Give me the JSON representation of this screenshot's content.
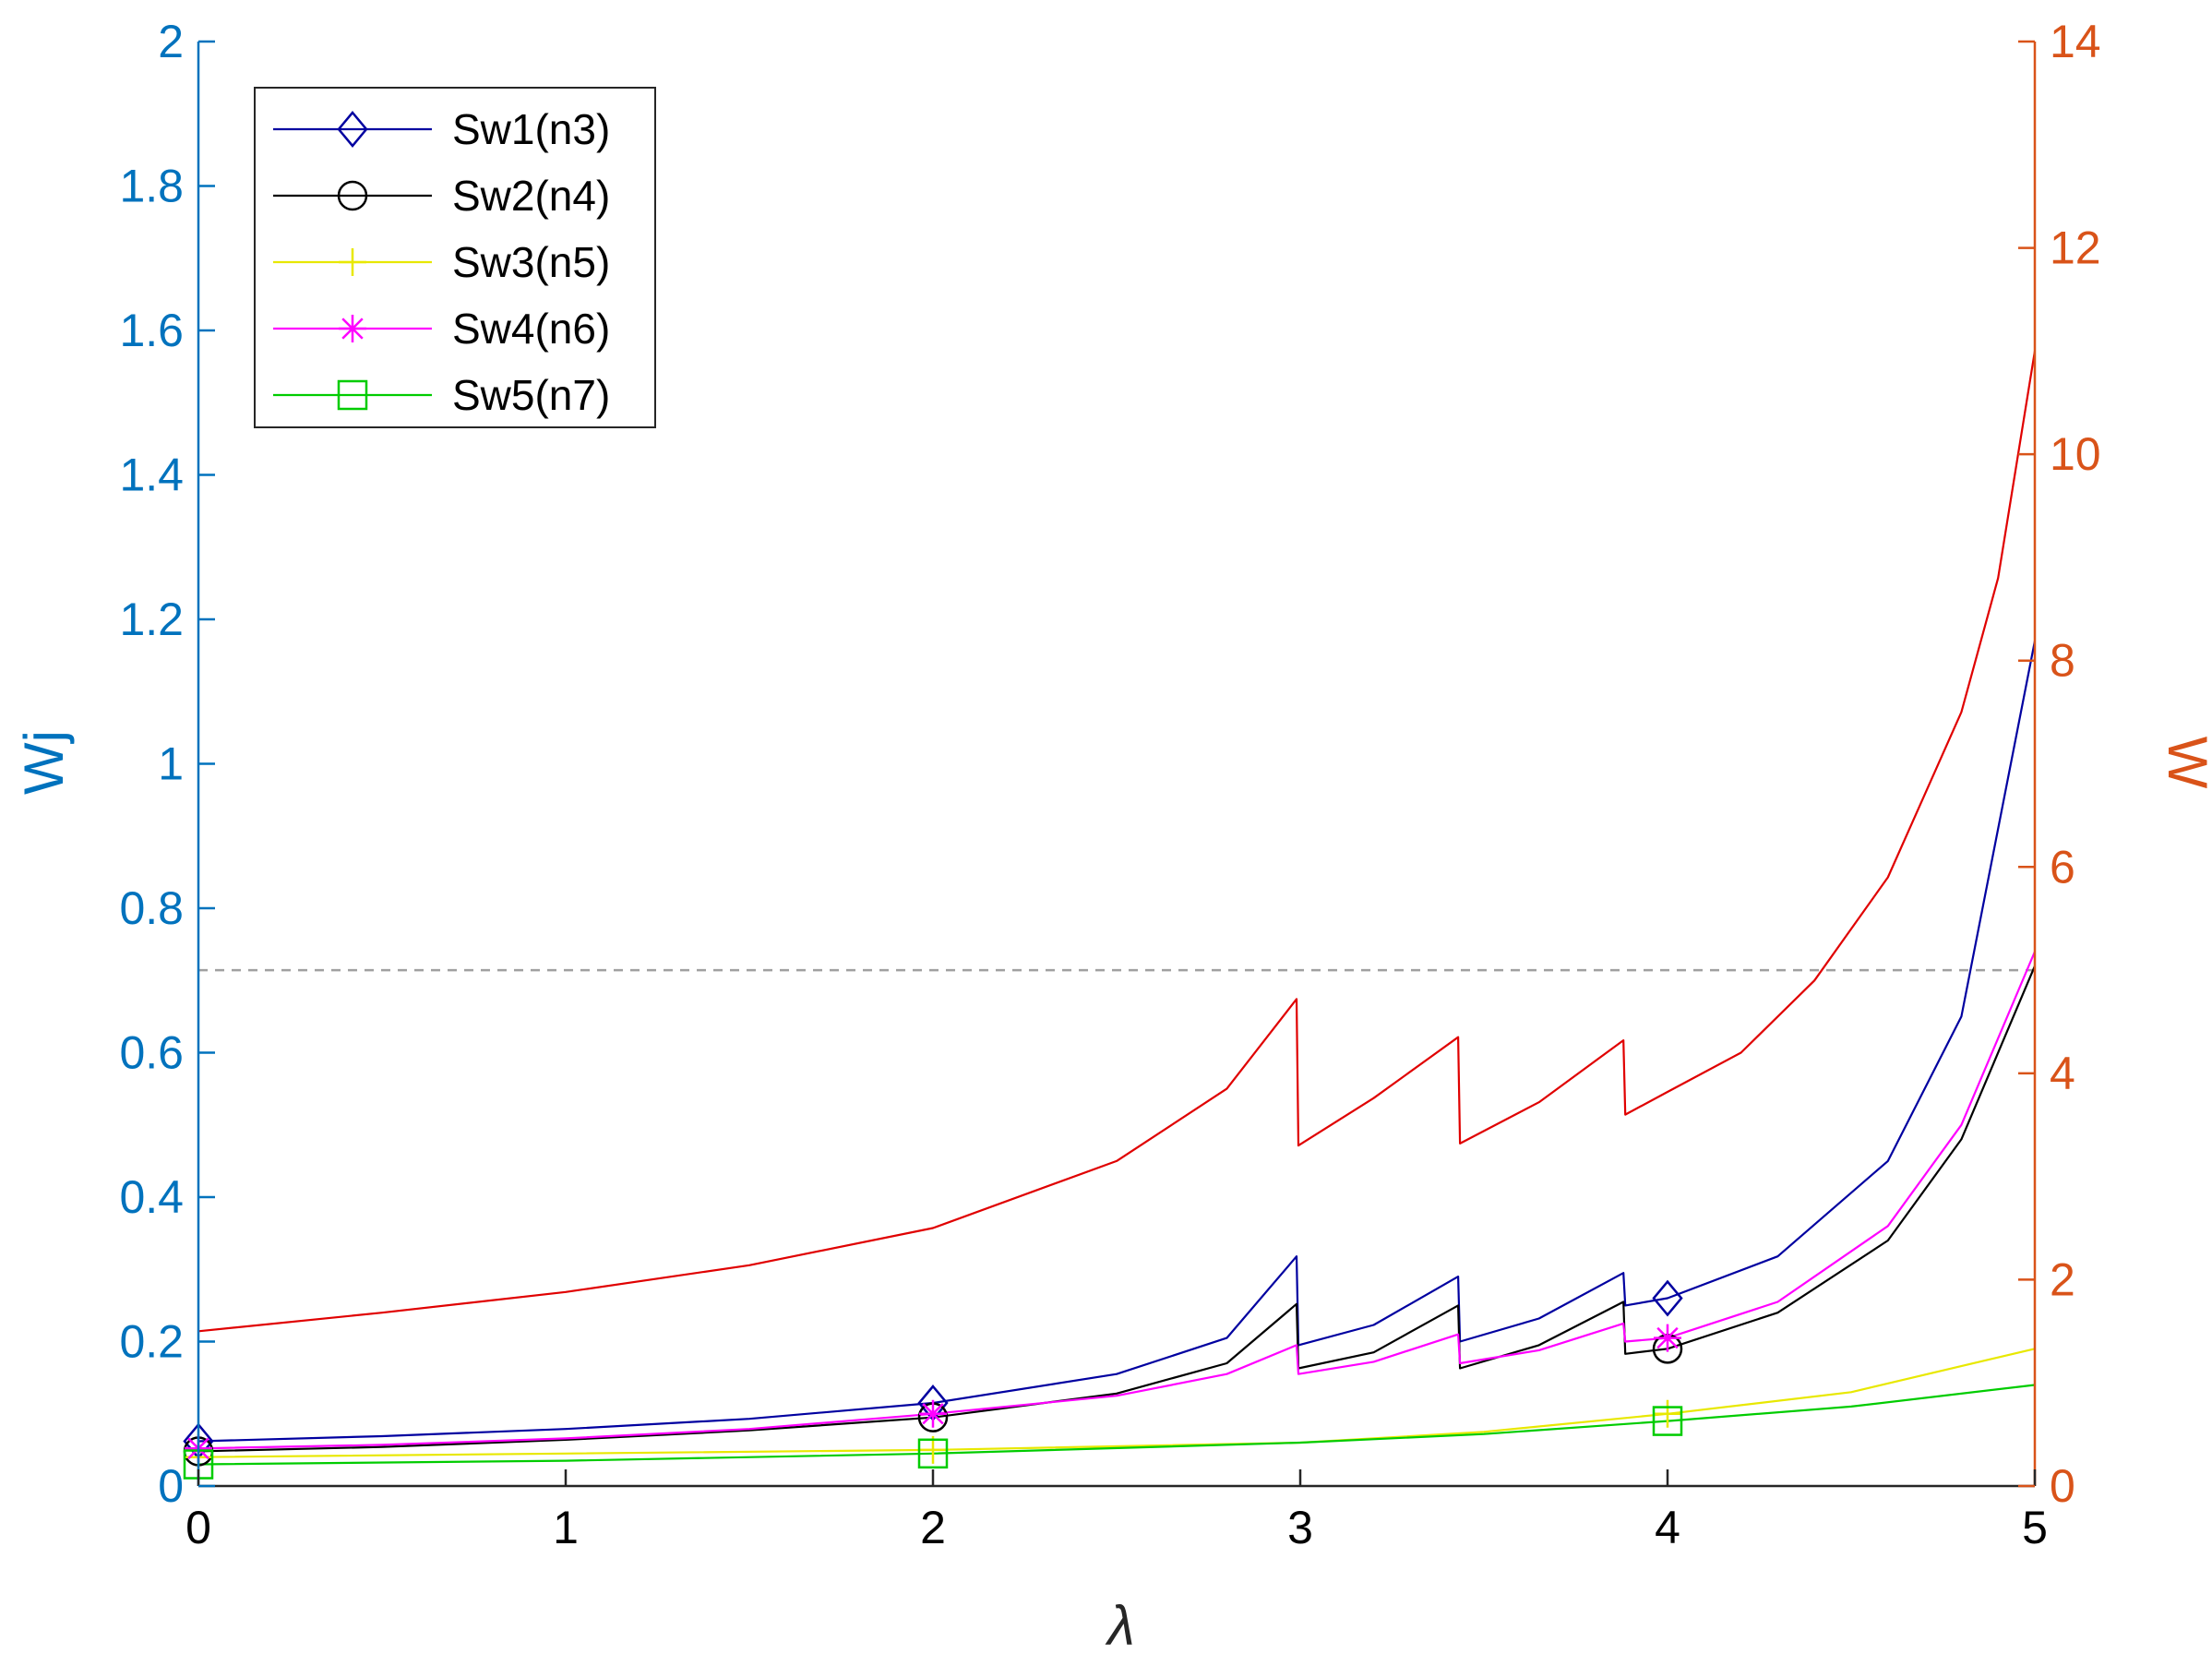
{
  "chart_data": {
    "type": "line",
    "xlabel": "λ",
    "ylabel_left": "Wj",
    "ylabel_right": "W",
    "xlim": [
      0,
      5
    ],
    "ylim_left": [
      0,
      2
    ],
    "ylim_right": [
      0,
      14
    ],
    "x_tick_labels": [
      "0",
      "1",
      "2",
      "3",
      "4",
      "5"
    ],
    "y_left_tick_labels": [
      "0",
      "0.2",
      "0.4",
      "0.6",
      "0.8",
      "1",
      "1.2",
      "1.4",
      "1.6",
      "1.8",
      "2"
    ],
    "y_right_tick_labels": [
      "0",
      "2",
      "4",
      "6",
      "8",
      "10",
      "12",
      "14"
    ],
    "grid": false,
    "legend_position": "top-left",
    "colors": {
      "left_axis": "#0072bd",
      "right_axis": "#d95319",
      "reference_line": "#a0a0a0"
    },
    "reference_line": {
      "axis": "right",
      "y": 5
    },
    "series": [
      {
        "name": "Sw1(n3)",
        "axis": "left",
        "color": "#0000a0",
        "marker": "diamond",
        "marker_x": [
          0,
          2,
          4
        ],
        "points": [
          [
            0,
            0.062
          ],
          [
            0.5,
            0.069
          ],
          [
            1,
            0.079
          ],
          [
            1.5,
            0.093
          ],
          [
            2,
            0.115
          ],
          [
            2.5,
            0.155
          ],
          [
            2.8,
            0.205
          ],
          [
            2.99,
            0.318
          ],
          [
            2.995,
            0.195
          ],
          [
            3.2,
            0.223
          ],
          [
            3.43,
            0.29
          ],
          [
            3.435,
            0.2
          ],
          [
            3.65,
            0.232
          ],
          [
            3.88,
            0.295
          ],
          [
            3.885,
            0.25
          ],
          [
            4,
            0.26
          ],
          [
            4.3,
            0.318
          ],
          [
            4.6,
            0.45
          ],
          [
            4.8,
            0.65
          ],
          [
            5,
            1.17
          ]
        ]
      },
      {
        "name": "Sw2(n4)",
        "axis": "left",
        "color": "#000000",
        "marker": "circle",
        "marker_x": [
          0,
          2,
          4
        ],
        "points": [
          [
            0,
            0.048
          ],
          [
            0.5,
            0.054
          ],
          [
            1,
            0.064
          ],
          [
            1.5,
            0.077
          ],
          [
            2,
            0.095
          ],
          [
            2.5,
            0.128
          ],
          [
            2.8,
            0.17
          ],
          [
            2.99,
            0.252
          ],
          [
            2.995,
            0.163
          ],
          [
            3.2,
            0.185
          ],
          [
            3.43,
            0.25
          ],
          [
            3.435,
            0.163
          ],
          [
            3.65,
            0.195
          ],
          [
            3.88,
            0.255
          ],
          [
            3.885,
            0.183
          ],
          [
            4,
            0.19
          ],
          [
            4.3,
            0.24
          ],
          [
            4.6,
            0.34
          ],
          [
            4.8,
            0.48
          ],
          [
            5,
            0.72
          ]
        ]
      },
      {
        "name": "Sw3(n5)",
        "axis": "left",
        "color": "#e8e800",
        "marker": "plus",
        "marker_x": [
          0,
          2,
          4
        ],
        "points": [
          [
            0,
            0.04
          ],
          [
            1,
            0.045
          ],
          [
            2,
            0.05
          ],
          [
            3,
            0.06
          ],
          [
            3.5,
            0.075
          ],
          [
            4,
            0.1
          ],
          [
            4.5,
            0.13
          ],
          [
            5,
            0.19
          ]
        ]
      },
      {
        "name": "Sw4(n6)",
        "axis": "left",
        "color": "#ff00ff",
        "marker": "asterisk",
        "marker_x": [
          0,
          2,
          4
        ],
        "points": [
          [
            0,
            0.052
          ],
          [
            0.5,
            0.057
          ],
          [
            1,
            0.066
          ],
          [
            1.5,
            0.079
          ],
          [
            2,
            0.1
          ],
          [
            2.5,
            0.125
          ],
          [
            2.8,
            0.155
          ],
          [
            2.99,
            0.195
          ],
          [
            2.995,
            0.155
          ],
          [
            3.2,
            0.172
          ],
          [
            3.43,
            0.21
          ],
          [
            3.435,
            0.17
          ],
          [
            3.65,
            0.188
          ],
          [
            3.88,
            0.225
          ],
          [
            3.885,
            0.2
          ],
          [
            4,
            0.205
          ],
          [
            4.3,
            0.255
          ],
          [
            4.6,
            0.36
          ],
          [
            4.8,
            0.5
          ],
          [
            5,
            0.74
          ]
        ]
      },
      {
        "name": "Sw5(n7)",
        "axis": "left",
        "color": "#00cc00",
        "marker": "square",
        "marker_x": [
          0,
          2,
          4
        ],
        "points": [
          [
            0,
            0.03
          ],
          [
            1,
            0.035
          ],
          [
            2,
            0.045
          ],
          [
            3,
            0.06
          ],
          [
            3.5,
            0.072
          ],
          [
            4,
            0.09
          ],
          [
            4.5,
            0.11
          ],
          [
            5,
            0.14
          ]
        ]
      },
      {
        "name": "",
        "axis": "right",
        "color": "#e00000",
        "marker": "none",
        "marker_x": [],
        "points": [
          [
            0,
            1.5
          ],
          [
            0.5,
            1.68
          ],
          [
            1,
            1.88
          ],
          [
            1.5,
            2.14
          ],
          [
            2,
            2.5
          ],
          [
            2.5,
            3.15
          ],
          [
            2.8,
            3.85
          ],
          [
            2.99,
            4.72
          ],
          [
            2.995,
            3.3
          ],
          [
            3.2,
            3.76
          ],
          [
            3.43,
            4.35
          ],
          [
            3.435,
            3.32
          ],
          [
            3.65,
            3.72
          ],
          [
            3.88,
            4.32
          ],
          [
            3.885,
            3.6
          ],
          [
            4,
            3.82
          ],
          [
            4.2,
            4.2
          ],
          [
            4.4,
            4.9
          ],
          [
            4.6,
            5.9
          ],
          [
            4.8,
            7.5
          ],
          [
            4.9,
            8.8
          ],
          [
            5,
            11.0
          ]
        ]
      }
    ]
  }
}
